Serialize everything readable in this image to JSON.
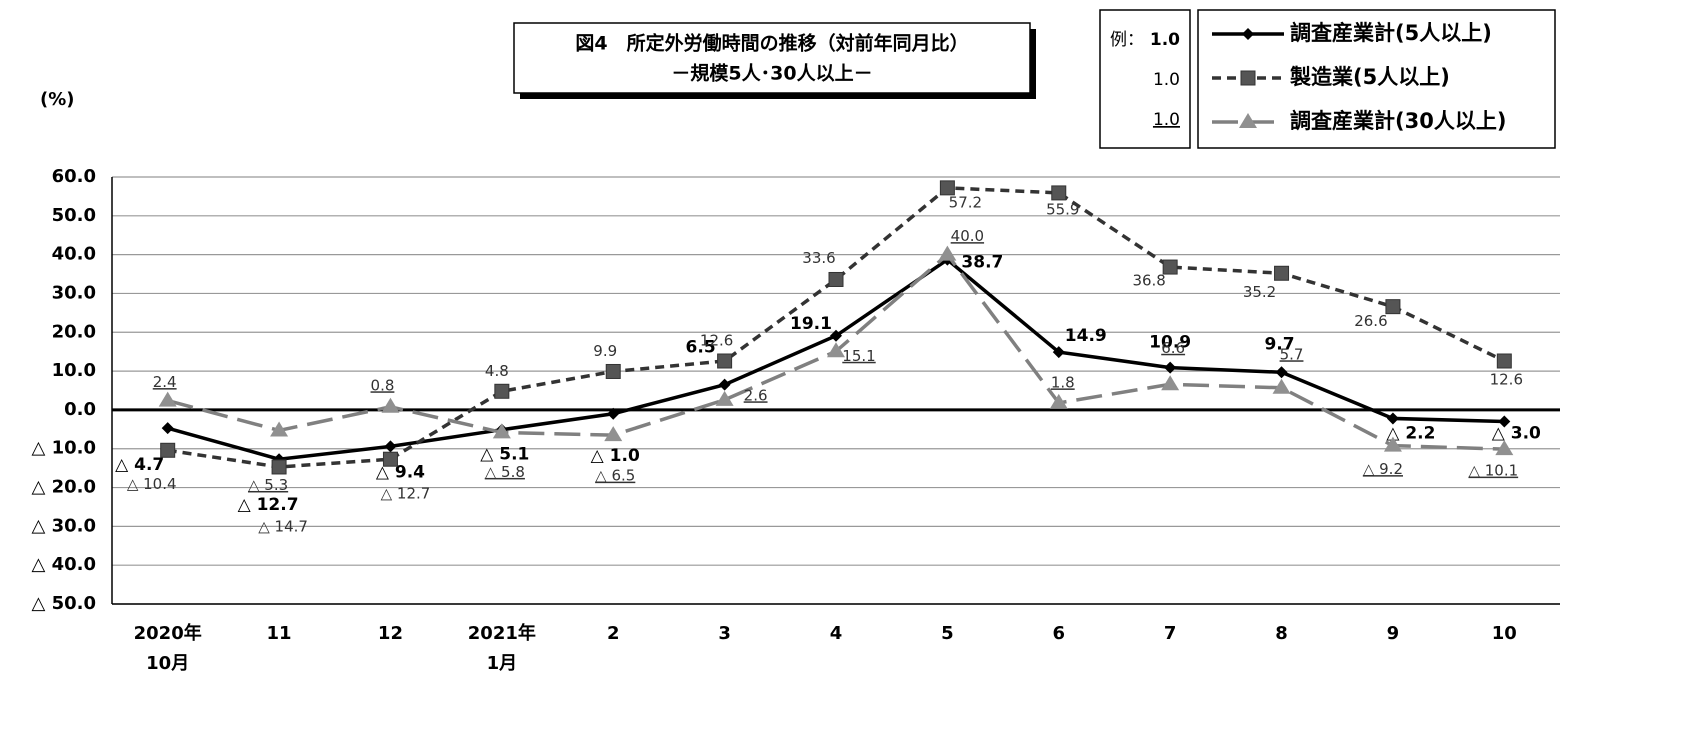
{
  "chart_data": {
    "type": "line",
    "title": "図4　所定外労働時間の推移（対前年同月比）",
    "subtitle": "－規模5人･30人以上－",
    "y_label": "(%)",
    "legend_example": {
      "label": "例：",
      "samples": [
        "1.0",
        "1.0",
        "1.0"
      ]
    },
    "categories": [
      "2020年\n10月",
      "11",
      "12",
      "2021年\n1月",
      "2",
      "3",
      "4",
      "5",
      "6",
      "7",
      "8",
      "9",
      "10"
    ],
    "ylim": [
      -50,
      60
    ],
    "yticks": [
      {
        "value": 60,
        "label": "60.0"
      },
      {
        "value": 50,
        "label": "50.0"
      },
      {
        "value": 40,
        "label": "40.0"
      },
      {
        "value": 30,
        "label": "30.0"
      },
      {
        "value": 20,
        "label": "20.0"
      },
      {
        "value": 10,
        "label": "10.0"
      },
      {
        "value": 0,
        "label": "0.0"
      },
      {
        "value": -10,
        "label": "△ 10.0"
      },
      {
        "value": -20,
        "label": "△ 20.0"
      },
      {
        "value": -30,
        "label": "△ 30.0"
      },
      {
        "value": -40,
        "label": "△ 40.0"
      },
      {
        "value": -50,
        "label": "△ 50.0"
      }
    ],
    "grid": true,
    "series": [
      {
        "name": "調査産業計(5人以上)",
        "color": "#000000",
        "marker": "diamond",
        "dash": "solid",
        "values": [
          -4.7,
          -12.7,
          -9.4,
          -5.1,
          -1.0,
          6.5,
          19.1,
          38.7,
          14.9,
          10.9,
          9.7,
          -2.2,
          -3.0
        ],
        "value_labels": [
          "△ 4.7",
          "△ 12.7",
          "△ 9.4",
          "△ 5.1",
          "△ 1.0",
          "6.5",
          "19.1",
          "38.7",
          "14.9",
          "10.9",
          "9.7",
          "△ 2.2",
          "△ 3.0"
        ]
      },
      {
        "name": "製造業(5人以上)",
        "color": "#333333",
        "marker": "square",
        "dash": "short",
        "values": [
          -10.4,
          -14.7,
          -12.7,
          4.8,
          9.9,
          12.6,
          33.6,
          57.2,
          55.9,
          36.8,
          35.2,
          26.6,
          12.6
        ],
        "value_labels": [
          "△ 10.4",
          "△ 14.7",
          "△ 12.7",
          "4.8",
          "9.9",
          "12.6",
          "33.6",
          "57.2",
          "55.9",
          "36.8",
          "35.2",
          "26.6",
          "12.6"
        ]
      },
      {
        "name": "調査産業計(30人以上)",
        "color": "#808080",
        "marker": "triangle",
        "dash": "long",
        "values": [
          2.4,
          -5.3,
          0.8,
          -5.8,
          -6.5,
          2.6,
          15.1,
          40.0,
          1.8,
          6.6,
          5.7,
          -9.2,
          -10.1
        ],
        "value_labels": [
          "2.4",
          "△ 5.3",
          "0.8",
          "△ 5.8",
          "△ 6.5",
          "2.6",
          "15.1",
          "40.0",
          "1.8",
          "6.6",
          "5.7",
          "△ 9.2",
          "△ 10.1"
        ]
      }
    ]
  }
}
